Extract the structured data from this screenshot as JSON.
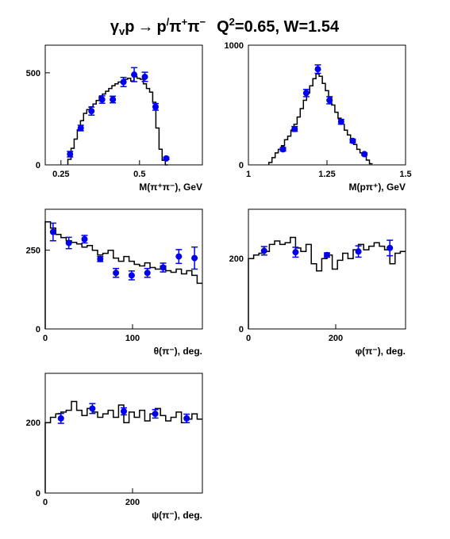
{
  "title": {
    "reaction_prefix": "γ",
    "reaction_sub": "v",
    "reaction_target": "p",
    "reaction_arrow": "→",
    "reaction_products_a": "p",
    "reaction_prime": "/",
    "reaction_pi1": "π",
    "reaction_pi1_charge": "+",
    "reaction_pi2": "π",
    "reaction_pi2_charge": "−",
    "q_label": "Q",
    "q_exp": "2",
    "q_value": "=0.65, W=1.54"
  },
  "style": {
    "data_color": "#0000ee",
    "model_color": "#000000",
    "frame_color": "#000000"
  },
  "chart_data": [
    {
      "id": "m-pipi",
      "type": "scatter",
      "xlabel": "M(π⁺π⁻), GeV",
      "xlim": [
        0.2,
        0.7
      ],
      "ylim": [
        0,
        650
      ],
      "xticks": [
        {
          "v": 0.25,
          "label": "0.25"
        },
        {
          "v": 0.5,
          "label": "0.5"
        }
      ],
      "yticks": [
        {
          "v": 0,
          "label": "0"
        },
        {
          "v": 500,
          "label": "500"
        }
      ],
      "points": [
        {
          "x": 0.279,
          "y": 58,
          "err": 15
        },
        {
          "x": 0.313,
          "y": 200,
          "err": 15
        },
        {
          "x": 0.347,
          "y": 292,
          "err": 22
        },
        {
          "x": 0.381,
          "y": 355,
          "err": 20
        },
        {
          "x": 0.415,
          "y": 355,
          "err": 18
        },
        {
          "x": 0.449,
          "y": 450,
          "err": 25
        },
        {
          "x": 0.483,
          "y": 490,
          "err": 38
        },
        {
          "x": 0.517,
          "y": 478,
          "err": 25
        },
        {
          "x": 0.551,
          "y": 315,
          "err": 18
        },
        {
          "x": 0.585,
          "y": 35,
          "err": 6
        }
      ],
      "model": {
        "edges": [
          0.272,
          0.282,
          0.292,
          0.302,
          0.312,
          0.322,
          0.332,
          0.342,
          0.352,
          0.362,
          0.372,
          0.382,
          0.392,
          0.402,
          0.412,
          0.422,
          0.432,
          0.442,
          0.452,
          0.462,
          0.472,
          0.482,
          0.492,
          0.502,
          0.512,
          0.522,
          0.532,
          0.542,
          0.552,
          0.562,
          0.572,
          0.582,
          0.59
        ],
        "values": [
          30,
          90,
          140,
          190,
          240,
          280,
          300,
          315,
          330,
          350,
          370,
          385,
          400,
          415,
          430,
          440,
          450,
          455,
          465,
          470,
          455,
          480,
          470,
          465,
          440,
          415,
          395,
          340,
          200,
          85,
          25,
          0
        ]
      }
    },
    {
      "id": "m-ppi",
      "type": "scatter",
      "xlabel": "M(pπ⁺), GeV",
      "xlim": [
        1.0,
        1.5
      ],
      "ylim": [
        0,
        1000
      ],
      "xticks": [
        {
          "v": 1.0,
          "label": "1"
        },
        {
          "v": 1.25,
          "label": "1.25"
        },
        {
          "v": 1.5,
          "label": "1.5"
        }
      ],
      "yticks": [
        {
          "v": 0,
          "label": "0"
        },
        {
          "v": 1000,
          "label": "1000"
        }
      ],
      "points": [
        {
          "x": 1.11,
          "y": 130,
          "err": 15
        },
        {
          "x": 1.147,
          "y": 300,
          "err": 20
        },
        {
          "x": 1.184,
          "y": 600,
          "err": 30
        },
        {
          "x": 1.221,
          "y": 800,
          "err": 35
        },
        {
          "x": 1.258,
          "y": 540,
          "err": 30
        },
        {
          "x": 1.295,
          "y": 360,
          "err": 20
        },
        {
          "x": 1.332,
          "y": 200,
          "err": 15
        },
        {
          "x": 1.369,
          "y": 90,
          "err": 10
        }
      ],
      "model": {
        "edges": [
          1.065,
          1.075,
          1.085,
          1.095,
          1.105,
          1.115,
          1.125,
          1.135,
          1.145,
          1.155,
          1.165,
          1.175,
          1.185,
          1.195,
          1.205,
          1.215,
          1.225,
          1.235,
          1.245,
          1.255,
          1.265,
          1.275,
          1.285,
          1.295,
          1.305,
          1.315,
          1.325,
          1.335,
          1.345,
          1.355,
          1.365,
          1.375,
          1.385,
          1.395
        ],
        "values": [
          20,
          60,
          100,
          130,
          160,
          210,
          240,
          290,
          340,
          400,
          470,
          540,
          600,
          660,
          720,
          760,
          740,
          680,
          620,
          560,
          500,
          440,
          390,
          340,
          290,
          250,
          210,
          170,
          130,
          100,
          70,
          40,
          10
        ]
      }
    },
    {
      "id": "theta",
      "type": "scatter",
      "xlabel": "θ(π⁻), deg.",
      "xlim": [
        0,
        180
      ],
      "ylim": [
        0,
        380
      ],
      "xticks": [
        {
          "v": 0,
          "label": "0"
        },
        {
          "v": 100,
          "label": "100"
        }
      ],
      "yticks": [
        {
          "v": 0,
          "label": "0"
        },
        {
          "v": 250,
          "label": "250"
        }
      ],
      "points": [
        {
          "x": 9,
          "y": 308,
          "err": 28
        },
        {
          "x": 27,
          "y": 273,
          "err": 18
        },
        {
          "x": 45,
          "y": 285,
          "err": 12
        },
        {
          "x": 63,
          "y": 222,
          "err": 8
        },
        {
          "x": 81,
          "y": 178,
          "err": 14
        },
        {
          "x": 99,
          "y": 170,
          "err": 14
        },
        {
          "x": 117,
          "y": 178,
          "err": 14
        },
        {
          "x": 135,
          "y": 195,
          "err": 14
        },
        {
          "x": 153,
          "y": 230,
          "err": 22
        },
        {
          "x": 171,
          "y": 225,
          "err": 35
        }
      ],
      "model": {
        "edges": [
          0,
          6,
          12,
          18,
          24,
          30,
          36,
          42,
          48,
          54,
          60,
          66,
          72,
          78,
          84,
          90,
          96,
          102,
          108,
          114,
          120,
          126,
          132,
          138,
          144,
          150,
          156,
          162,
          168,
          174,
          180
        ],
        "values": [
          340,
          320,
          300,
          290,
          280,
          275,
          270,
          260,
          265,
          250,
          235,
          240,
          250,
          225,
          215,
          230,
          215,
          205,
          200,
          210,
          195,
          190,
          200,
          185,
          180,
          190,
          175,
          185,
          170,
          145
        ]
      }
    },
    {
      "id": "phi",
      "type": "scatter",
      "xlabel": "φ(π⁻), deg.",
      "xlim": [
        0,
        360
      ],
      "ylim": [
        0,
        340
      ],
      "xticks": [
        {
          "v": 0,
          "label": "0"
        },
        {
          "v": 200,
          "label": "200"
        }
      ],
      "yticks": [
        {
          "v": 0,
          "label": "0"
        },
        {
          "v": 200,
          "label": "200"
        }
      ],
      "points": [
        {
          "x": 36,
          "y": 222,
          "err": 12
        },
        {
          "x": 108,
          "y": 218,
          "err": 14
        },
        {
          "x": 180,
          "y": 210,
          "err": 6
        },
        {
          "x": 252,
          "y": 220,
          "err": 16
        },
        {
          "x": 324,
          "y": 230,
          "err": 22
        }
      ],
      "model": {
        "edges": [
          0,
          12,
          24,
          36,
          48,
          60,
          72,
          84,
          96,
          108,
          120,
          132,
          144,
          156,
          168,
          180,
          192,
          204,
          216,
          228,
          240,
          252,
          264,
          276,
          288,
          300,
          312,
          324,
          336,
          348,
          360
        ],
        "values": [
          200,
          210,
          215,
          220,
          240,
          250,
          240,
          245,
          260,
          230,
          220,
          240,
          185,
          165,
          200,
          210,
          170,
          195,
          215,
          200,
          225,
          240,
          225,
          235,
          245,
          235,
          225,
          185,
          215,
          220
        ]
      }
    },
    {
      "id": "psi",
      "type": "scatter",
      "xlabel": "ψ(π⁻), deg.",
      "xlim": [
        0,
        360
      ],
      "ylim": [
        0,
        340
      ],
      "xticks": [
        {
          "v": 0,
          "label": "0"
        },
        {
          "v": 200,
          "label": "200"
        }
      ],
      "yticks": [
        {
          "v": 0,
          "label": "0"
        },
        {
          "v": 200,
          "label": "200"
        }
      ],
      "points": [
        {
          "x": 36,
          "y": 212,
          "err": 14
        },
        {
          "x": 108,
          "y": 240,
          "err": 14
        },
        {
          "x": 180,
          "y": 232,
          "err": 10
        },
        {
          "x": 252,
          "y": 225,
          "err": 12
        },
        {
          "x": 324,
          "y": 212,
          "err": 12
        }
      ],
      "model": {
        "edges": [
          0,
          12,
          24,
          36,
          48,
          60,
          72,
          84,
          96,
          108,
          120,
          132,
          144,
          156,
          168,
          180,
          192,
          204,
          216,
          228,
          240,
          252,
          264,
          276,
          288,
          300,
          312,
          324,
          336,
          348,
          360
        ],
        "values": [
          200,
          215,
          225,
          230,
          235,
          260,
          235,
          220,
          240,
          230,
          215,
          225,
          235,
          215,
          250,
          200,
          230,
          215,
          235,
          205,
          225,
          240,
          220,
          205,
          215,
          230,
          200,
          210,
          225,
          210
        ]
      }
    }
  ]
}
